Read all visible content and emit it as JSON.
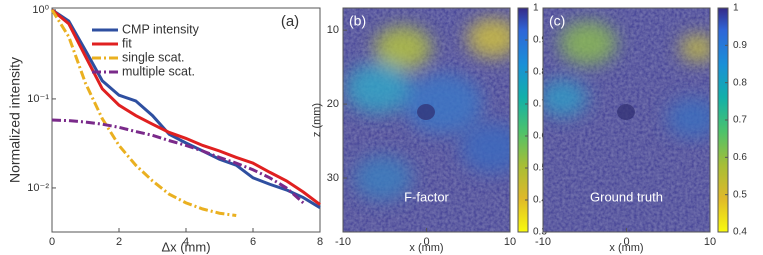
{
  "chart_data": [
    {
      "type": "line",
      "annotation": "(a)",
      "xlabel": "Δx (mm)",
      "ylabel": "Normalized intensity",
      "log_y": true,
      "x": [
        0,
        0.5,
        1,
        1.5,
        2,
        2.5,
        3,
        3.5,
        4,
        4.5,
        5,
        5.5,
        6,
        6.5,
        7,
        7.5,
        8
      ],
      "xlim": [
        0,
        8
      ],
      "xticks": [
        0,
        2,
        4,
        6,
        8
      ],
      "ylim": [
        0.0032,
        1.05
      ],
      "yticks": [
        {
          "value": 1,
          "label": "10⁰"
        },
        {
          "value": 0.1,
          "label": "10⁻¹"
        },
        {
          "value": 0.01,
          "label": "10⁻²"
        }
      ],
      "series": [
        {
          "name": "CMP intensity",
          "color": "#2e4fa0",
          "dash": "solid",
          "values": [
            1,
            0.75,
            0.35,
            0.16,
            0.11,
            0.095,
            0.065,
            0.04,
            0.032,
            0.026,
            0.021,
            0.018,
            0.013,
            0.011,
            0.0095,
            0.0078,
            0.006
          ]
        },
        {
          "name": "fit",
          "color": "#e02020",
          "dash": "solid",
          "values": [
            1,
            0.7,
            0.3,
            0.13,
            0.085,
            0.065,
            0.052,
            0.042,
            0.036,
            0.03,
            0.026,
            0.022,
            0.019,
            0.015,
            0.012,
            0.009,
            0.0065
          ]
        },
        {
          "name": "single scat.",
          "color": "#eab020",
          "dash": "dashdot",
          "values": [
            1,
            0.5,
            0.15,
            0.06,
            0.03,
            0.018,
            0.012,
            0.0085,
            0.0068,
            0.0058,
            0.0052,
            0.0049,
            null,
            null,
            null,
            null,
            null
          ]
        },
        {
          "name": "multiple scat.",
          "color": "#7a2a8a",
          "dash": "dashdot",
          "values": [
            0.058,
            0.057,
            0.055,
            0.052,
            0.048,
            0.043,
            0.039,
            0.034,
            0.03,
            0.026,
            0.022,
            0.019,
            0.016,
            0.013,
            0.01,
            0.0068,
            null
          ]
        }
      ]
    },
    {
      "type": "image",
      "annotation": "(b)",
      "caption": "F-factor",
      "xlabel": "x (mm)",
      "ylabel": "z (mm)",
      "xlim": [
        -10,
        10
      ],
      "xticks": [
        -10,
        0,
        10
      ],
      "ylim": [
        7,
        37.3
      ],
      "yticks": [
        10,
        20,
        30
      ],
      "colorbar_lim": [
        0.3,
        1
      ],
      "colorbar_ticks": [
        0.3,
        0.4,
        0.5,
        0.6,
        0.7,
        0.8,
        0.9,
        1
      ]
    },
    {
      "type": "image",
      "annotation": "(c)",
      "caption": "Ground truth",
      "xlabel": "x (mm)",
      "xlim": [
        -10,
        10
      ],
      "xticks": [
        -10,
        0,
        10
      ],
      "colorbar_lim": [
        0.4,
        1
      ],
      "colorbar_ticks": [
        0.4,
        0.5,
        0.6,
        0.7,
        0.8,
        0.9,
        1
      ]
    }
  ]
}
